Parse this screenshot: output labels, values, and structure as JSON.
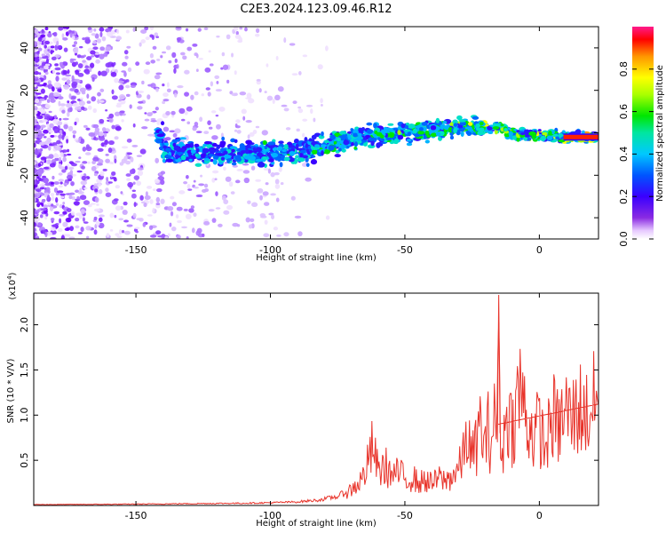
{
  "title": "C2E3.2024.123.09.46.R12",
  "chart_data": [
    {
      "type": "heatmap",
      "xlabel": "Height of straight line (km)",
      "ylabel": "Frequency (Hz)",
      "xlim": [
        -188,
        22
      ],
      "ylim": [
        -50,
        50
      ],
      "xticks": [
        -150,
        -100,
        -50,
        0
      ],
      "yticks": [
        -40,
        -20,
        0,
        20,
        40
      ],
      "colorbar": {
        "label": "Normalized spectral amplitude",
        "range": [
          0,
          1
        ],
        "ticks": [
          0.0,
          0.2,
          0.4,
          0.6,
          0.8
        ],
        "colormap": "rainbow (white/violet to red)"
      },
      "ridge": {
        "x": [
          -140,
          -120,
          -100,
          -85,
          -75,
          -60,
          -50,
          -40,
          -30,
          -20,
          -15,
          -10,
          0,
          10,
          22
        ],
        "y": [
          -9,
          -10,
          -10,
          -8,
          -4,
          -1,
          0,
          1,
          3,
          2,
          3,
          -1,
          -1,
          -2,
          -2
        ]
      },
      "grid": false
    },
    {
      "type": "line",
      "xlabel": "Height of straight line (km)",
      "ylabel": "SNR (10 * V/V)",
      "multiplier": "(x10^4)",
      "multiplier_base": "(x10",
      "multiplier_exp": "4",
      "xlim": [
        -188,
        22
      ],
      "ylim": [
        0,
        23500
      ],
      "xticks": [
        -150,
        -100,
        -50,
        0
      ],
      "yticks": [
        5000,
        10000,
        15000,
        20000
      ],
      "ytick_labels": [
        "0.5",
        "1.0",
        "1.5",
        "2.0"
      ],
      "color": "#e8332a",
      "series": [
        {
          "x": [
            -188,
            -170,
            -150,
            -130,
            -110,
            -100,
            -90,
            -82,
            -75,
            -70,
            -66,
            -63,
            -62,
            -60,
            -57,
            -55,
            -52,
            -50,
            -47,
            -45,
            -42,
            -40,
            -37,
            -35,
            -32,
            -30,
            -28,
            -27,
            -25,
            -23,
            -22,
            -20,
            -19,
            -18,
            -17,
            -16,
            -15.2,
            -14.8,
            -14,
            -13,
            -12,
            -10,
            -8,
            -7,
            -5,
            -3,
            -2,
            0,
            2,
            5,
            7,
            10,
            12,
            15,
            18,
            20,
            22
          ],
          "y": [
            100,
            120,
            150,
            200,
            250,
            300,
            400,
            600,
            1000,
            1800,
            3000,
            5500,
            7000,
            4000,
            4500,
            3500,
            3800,
            3000,
            3300,
            2600,
            3000,
            2500,
            3200,
            2800,
            3600,
            4200,
            6000,
            8500,
            5500,
            7500,
            9500,
            6500,
            9000,
            7000,
            10500,
            8000,
            23300,
            12000,
            6000,
            8000,
            11500,
            9000,
            12500,
            14000,
            10000,
            9000,
            8000,
            9500,
            6500,
            10500,
            9000,
            11000,
            10000,
            11500,
            10500,
            12000,
            11000
          ]
        }
      ],
      "grid": false
    }
  ]
}
